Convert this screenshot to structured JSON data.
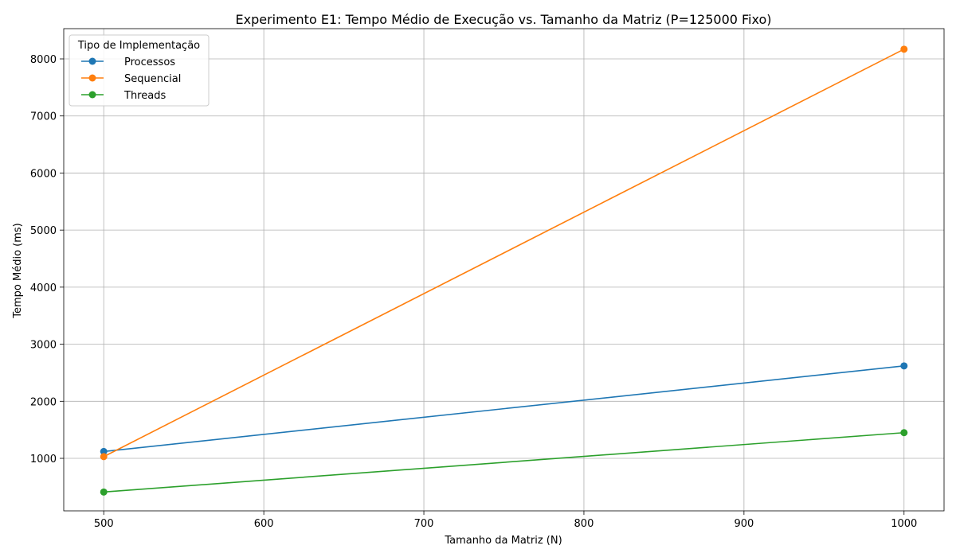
{
  "chart_data": {
    "type": "line",
    "title": "Experimento E1: Tempo Médio de Execução vs. Tamanho da Matriz (P=125000 Fixo)",
    "xlabel": "Tamanho da Matriz (N)",
    "ylabel": "Tempo Médio (ms)",
    "x": [
      500,
      1000
    ],
    "xlim": [
      475,
      1025
    ],
    "ylim": [
      80,
      8530
    ],
    "x_ticks": [
      500,
      600,
      700,
      800,
      900,
      1000
    ],
    "y_ticks": [
      1000,
      2000,
      3000,
      4000,
      5000,
      6000,
      7000,
      8000
    ],
    "grid": true,
    "legend": {
      "title": "Tipo de Implementação",
      "placement": "top-left"
    },
    "series": [
      {
        "name": "Processos",
        "color": "#1f77b4",
        "values": [
          1120,
          2620
        ]
      },
      {
        "name": "Sequencial",
        "color": "#ff7f0e",
        "values": [
          1030,
          8170
        ]
      },
      {
        "name": "Threads",
        "color": "#2ca02c",
        "values": [
          410,
          1450
        ]
      }
    ]
  }
}
